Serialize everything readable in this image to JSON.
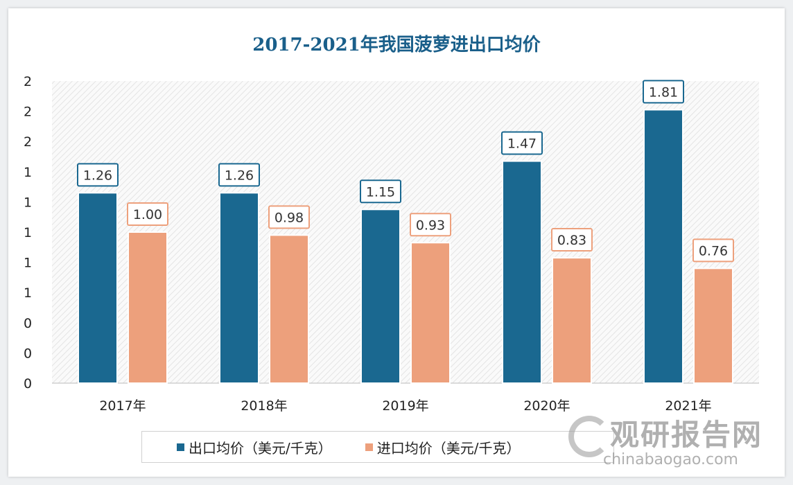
{
  "chart_data": {
    "type": "bar",
    "title": "2017-2021年我国菠萝进出口均价",
    "categories": [
      "2017年",
      "2018年",
      "2019年",
      "2020年",
      "2021年"
    ],
    "series": [
      {
        "name": "出口均价（美元/千克）",
        "values": [
          1.26,
          1.26,
          1.15,
          1.47,
          1.81
        ],
        "color": "#1a6890",
        "labels": [
          "1.26",
          "1.26",
          "1.15",
          "1.47",
          "1.81"
        ]
      },
      {
        "name": "进口均价（美元/千克）",
        "values": [
          1.0,
          0.98,
          0.93,
          0.83,
          0.76
        ],
        "color": "#eda07c",
        "labels": [
          "1.00",
          "0.98",
          "0.93",
          "0.83",
          "0.76"
        ]
      }
    ],
    "yticks": [
      0,
      0.2,
      0.4,
      0.6,
      0.8,
      1.0,
      1.2,
      1.4,
      1.6,
      1.8,
      2.0
    ],
    "ytick_labels": [
      "0",
      "0",
      "0",
      "1",
      "1",
      "1",
      "1",
      "1",
      "2",
      "2",
      "2"
    ],
    "ylim": [
      0,
      2
    ],
    "xlabel": "",
    "ylabel": "",
    "grid": false,
    "legend": "bottom"
  },
  "watermark": {
    "cn": "观研报告网",
    "en": "chinabaogao.com"
  }
}
